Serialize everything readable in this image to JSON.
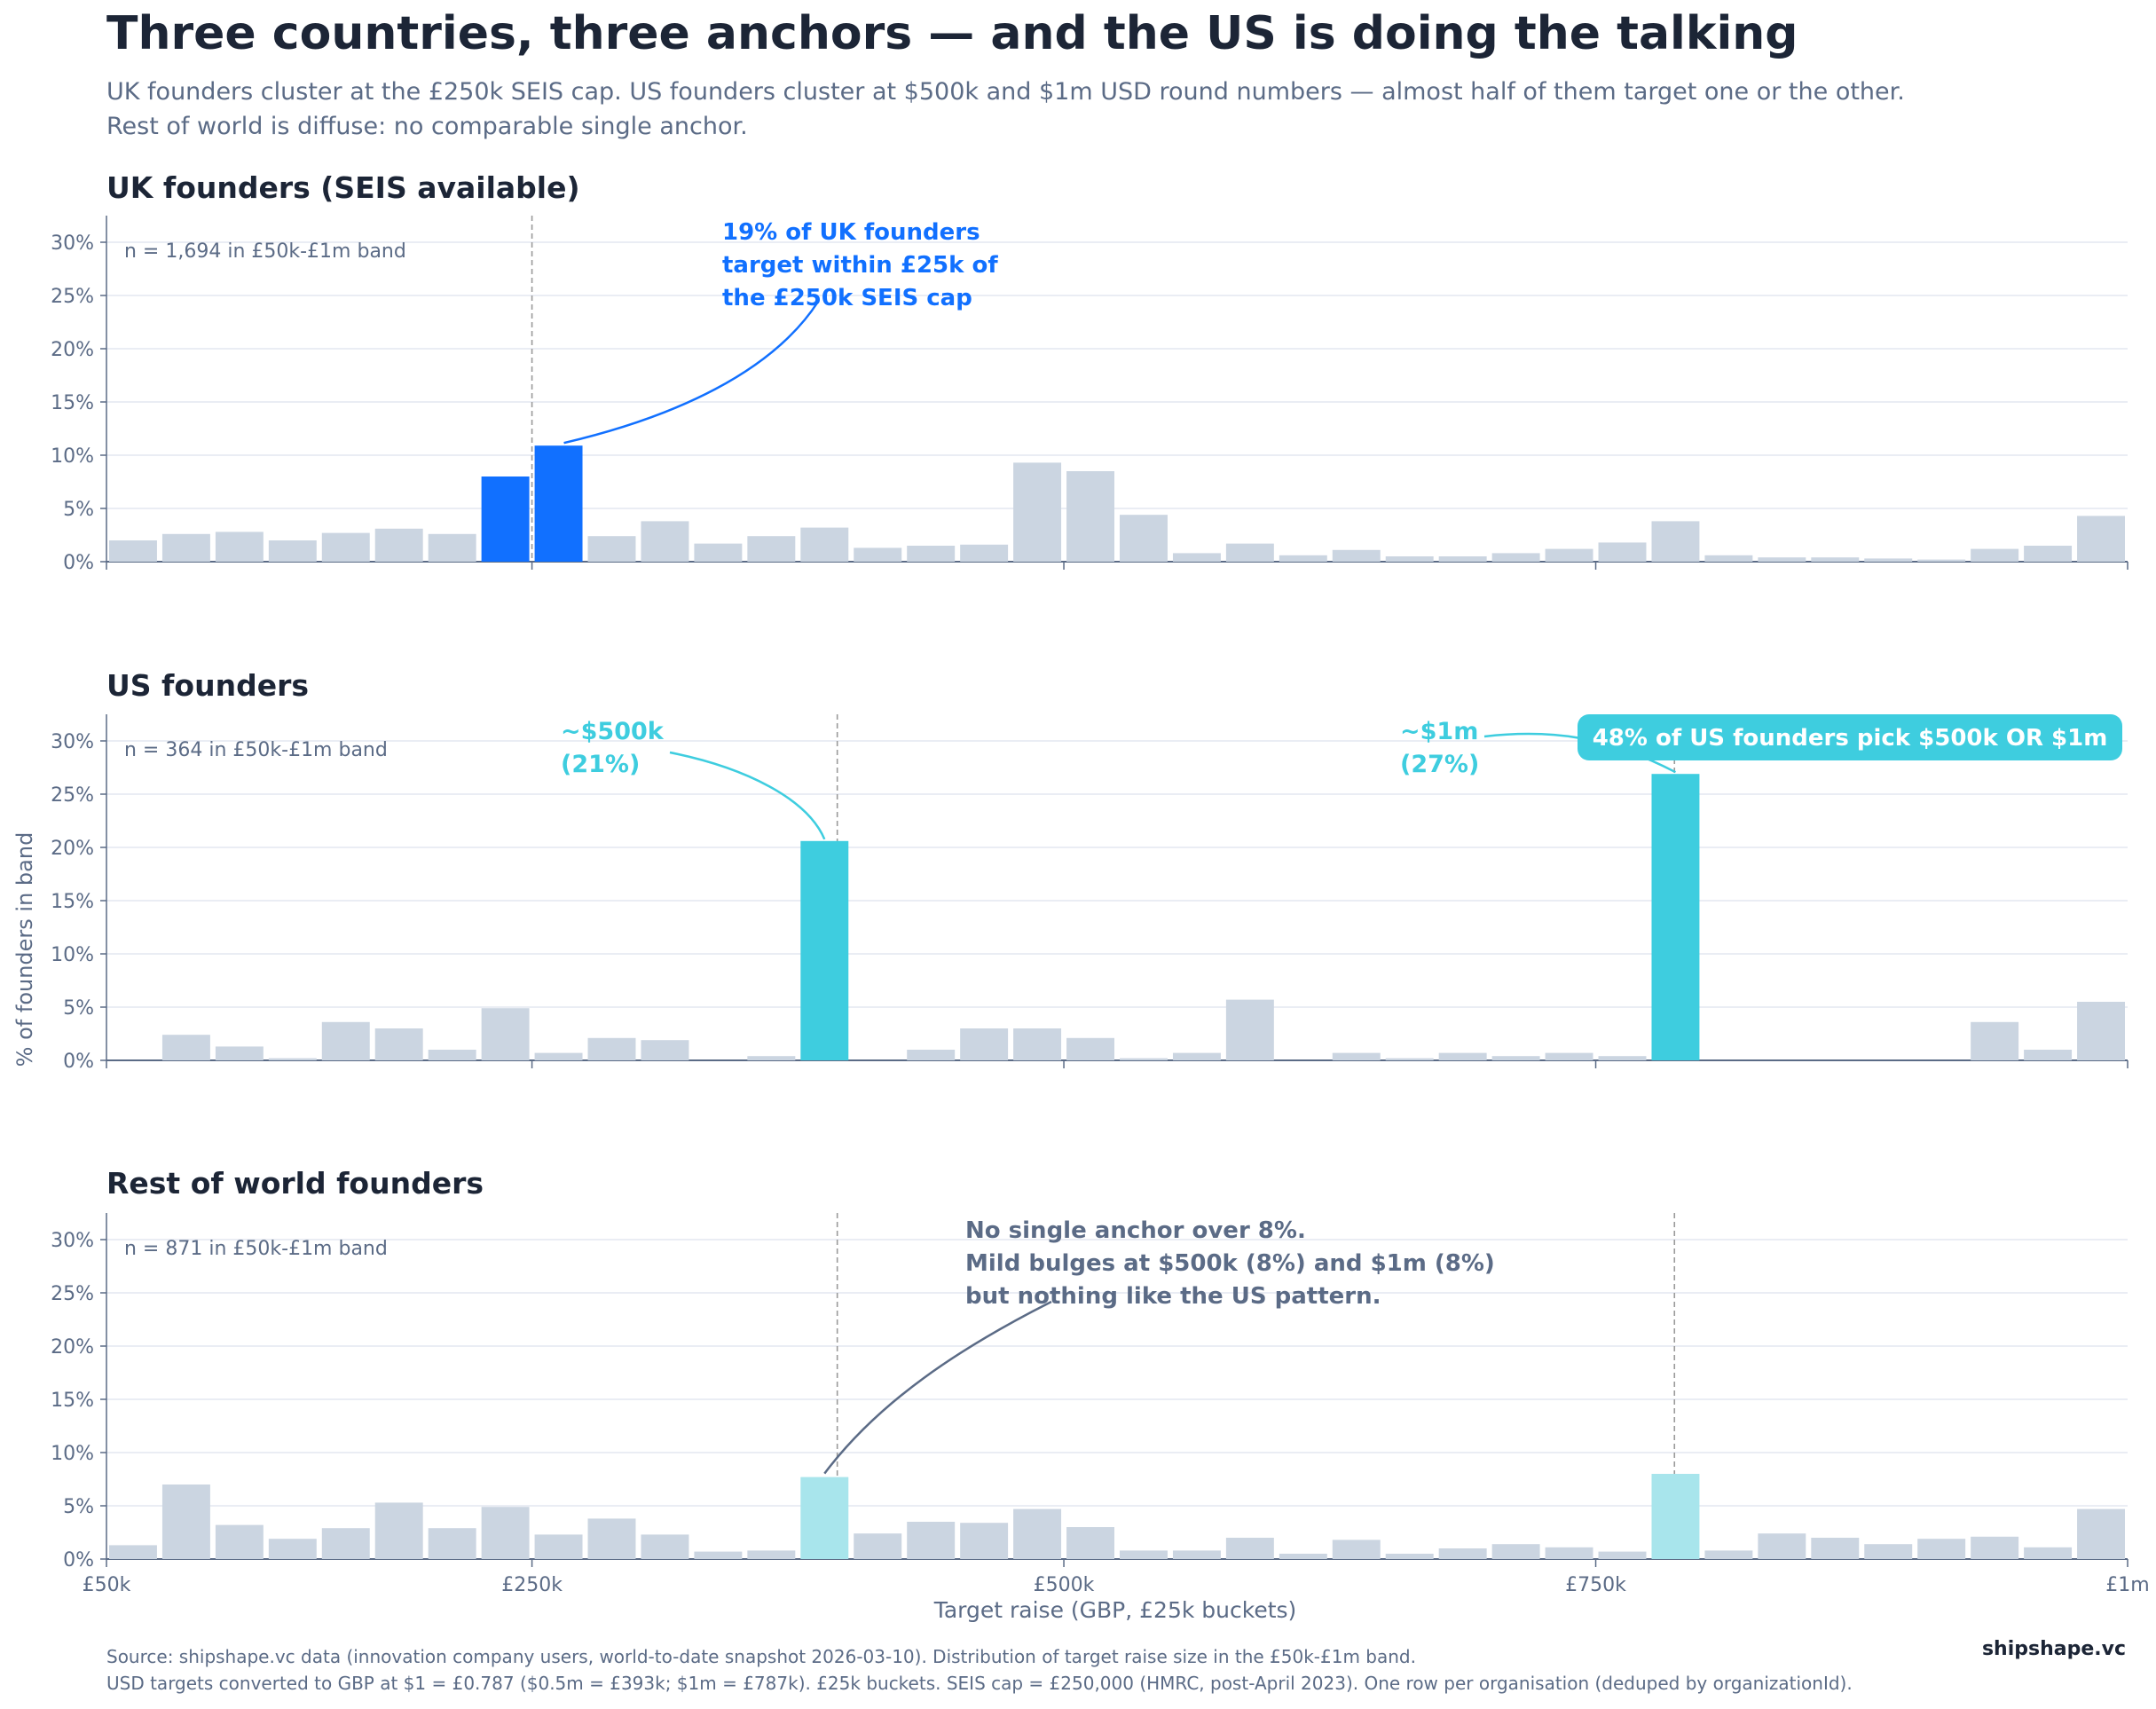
{
  "title": "Three countries, three anchors — and the US is doing the talking",
  "subtitle": "UK founders cluster at the £250k SEIS cap. US founders cluster at $500k and $1m USD round numbers — almost half of them target one or the other.\nRest of world is diffuse: no comparable single anchor.",
  "source_line1": "Source: shipshape.vc data (innovation company users, world-to-date snapshot 2026-03-10). Distribution of target raise size in the £50k-£1m band.",
  "source_line2": "USD targets converted to GBP at $1 = £0.787 ($0.5m = £393k; $1m = £787k). £25k buckets. SEIS cap = £250,000 (HMRC, post-April 2023). One row per organisation (deduped by organizationId).",
  "brand": "shipshape.vc",
  "colors": {
    "neutral_bar": "#cbd5e1",
    "uk_highlight": "#1170ff",
    "us_highlight": "#3ecddf",
    "row_highlight": "#a8e5ec",
    "text_dark": "#1c2536",
    "text_muted": "#5b6b86",
    "grid": "#e3e7f0",
    "ref_line": "#9a9a9a"
  },
  "chart_data": {
    "type": "bar",
    "xlabel": "Target raise (GBP, £25k buckets)",
    "ylabel": "% of founders in band",
    "xlim": [
      50000,
      1000000
    ],
    "ylim": [
      0,
      32.5
    ],
    "x_ticks": [
      {
        "value": 50000,
        "label": "£50k"
      },
      {
        "value": 250000,
        "label": "£250k"
      },
      {
        "value": 500000,
        "label": "£500k"
      },
      {
        "value": 750000,
        "label": "£750k"
      },
      {
        "value": 1000000,
        "label": "£1m"
      }
    ],
    "y_ticks": [
      {
        "value": 0,
        "label": "0%"
      },
      {
        "value": 5,
        "label": "5%"
      },
      {
        "value": 10,
        "label": "10%"
      },
      {
        "value": 15,
        "label": "15%"
      },
      {
        "value": 20,
        "label": "20%"
      },
      {
        "value": 25,
        "label": "25%"
      },
      {
        "value": 30,
        "label": "30%"
      }
    ],
    "grid": true,
    "bucket_width": 25000,
    "bucket_starts": [
      50000,
      75000,
      100000,
      125000,
      150000,
      175000,
      200000,
      225000,
      250000,
      275000,
      300000,
      325000,
      350000,
      375000,
      400000,
      425000,
      450000,
      475000,
      500000,
      525000,
      550000,
      575000,
      600000,
      625000,
      650000,
      675000,
      700000,
      725000,
      750000,
      775000,
      800000,
      825000,
      850000,
      875000,
      900000,
      925000,
      950000,
      975000
    ],
    "panels": [
      {
        "title": "UK founders (SEIS available)",
        "n_label": "n = 1,694 in £50k-£1m band",
        "values": [
          2.0,
          2.6,
          2.8,
          2.0,
          2.7,
          3.1,
          2.6,
          8.0,
          10.9,
          2.4,
          3.8,
          1.7,
          2.4,
          3.2,
          1.3,
          1.5,
          1.6,
          9.3,
          8.5,
          4.4,
          0.8,
          1.7,
          0.6,
          1.1,
          0.5,
          0.5,
          0.8,
          1.2,
          1.8,
          3.8,
          0.6,
          0.4,
          0.4,
          0.3,
          0.2,
          1.2,
          1.5,
          4.3
        ],
        "highlight_buckets": [
          7,
          8
        ],
        "highlight_color": "#1170ff",
        "reference_lines": [
          250000
        ],
        "annotations": [
          {
            "text": "19% of UK founders\ntarget within £25k of\nthe £250k SEIS cap",
            "color": "#1170ff"
          }
        ]
      },
      {
        "title": "US founders",
        "n_label": "n = 364 in £50k-£1m band",
        "values": [
          0,
          2.4,
          1.3,
          0.2,
          3.6,
          3.0,
          1.0,
          4.9,
          0.7,
          2.1,
          1.9,
          0,
          0.4,
          20.6,
          0,
          1.0,
          3.0,
          3.0,
          2.1,
          0.2,
          0.7,
          5.7,
          0,
          0.7,
          0.2,
          0.7,
          0.4,
          0.7,
          0.4,
          26.9,
          0,
          0,
          0,
          0,
          0,
          3.6,
          1.0,
          5.5
        ],
        "highlight_buckets": [
          13,
          29
        ],
        "highlight_color": "#3ecddf",
        "reference_lines": [
          393500,
          787000
        ],
        "annotations": [
          {
            "text": "~$500k\n(21%)",
            "color": "#3ecddf"
          },
          {
            "text": "~$1m\n(27%)",
            "color": "#3ecddf"
          }
        ],
        "callout": "48% of US founders pick $500k OR $1m"
      },
      {
        "title": "Rest of world founders",
        "n_label": "n = 871 in £50k-£1m band",
        "values": [
          1.3,
          7.0,
          3.2,
          1.9,
          2.9,
          5.3,
          2.9,
          4.9,
          2.3,
          3.8,
          2.3,
          0.7,
          0.8,
          7.7,
          2.4,
          3.5,
          3.4,
          4.7,
          3.0,
          0.8,
          0.8,
          2.0,
          0.5,
          1.8,
          0.5,
          1.0,
          1.4,
          1.1,
          0.7,
          8.0,
          0.8,
          2.4,
          2.0,
          1.4,
          1.9,
          2.1,
          1.1,
          4.7
        ],
        "highlight_buckets": [
          13,
          29
        ],
        "highlight_color": "#a8e5ec",
        "reference_lines": [
          393500,
          787000
        ],
        "annotations": [
          {
            "text": "No single anchor over 8%.\nMild bulges at $500k (8%) and $1m (8%)\nbut nothing like the US pattern.",
            "color": "#5b6b86"
          }
        ]
      }
    ]
  }
}
